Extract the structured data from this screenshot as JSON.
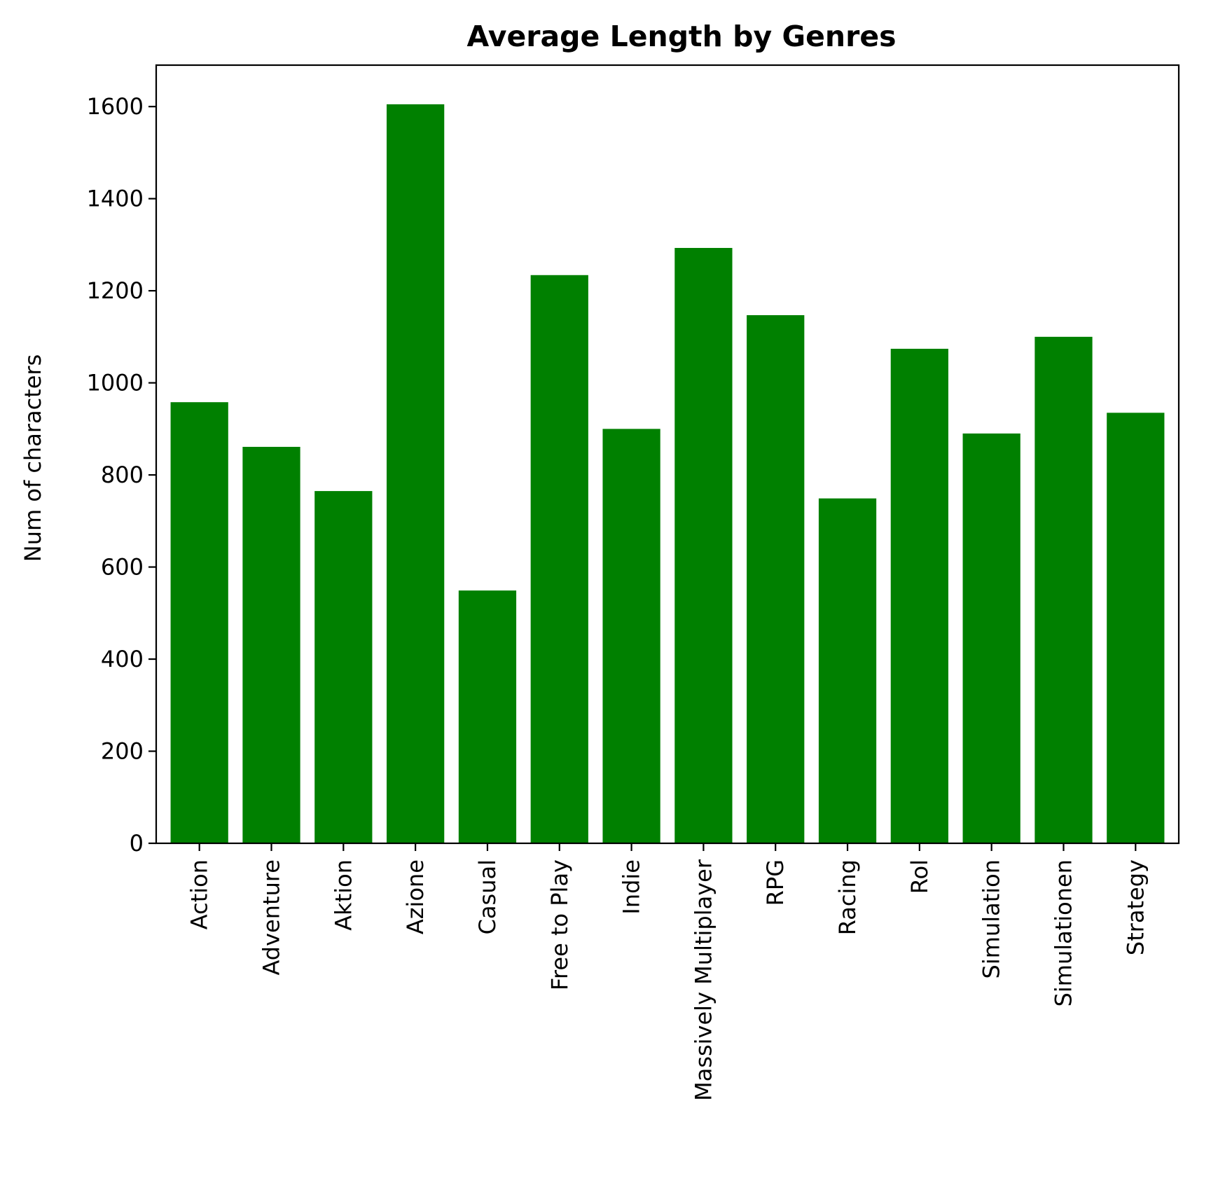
{
  "chart_data": {
    "type": "bar",
    "title": "Average Length by Genres",
    "xlabel": "",
    "ylabel": "Num of characters",
    "categories": [
      "Action",
      "Adventure",
      "Aktion",
      "Azione",
      "Casual",
      "Free to Play",
      "Indie",
      "Massively Multiplayer",
      "RPG",
      "Racing",
      "Rol",
      "Simulation",
      "Simulationen",
      "Strategy"
    ],
    "values": [
      958,
      861,
      765,
      1605,
      549,
      1234,
      900,
      1293,
      1147,
      749,
      1074,
      890,
      1100,
      935
    ],
    "ylim": [
      0,
      1690
    ],
    "yticks": [
      0,
      200,
      400,
      600,
      800,
      1000,
      1200,
      1400,
      1600
    ],
    "bar_color": "#008000",
    "grid": false,
    "legend": false
  }
}
